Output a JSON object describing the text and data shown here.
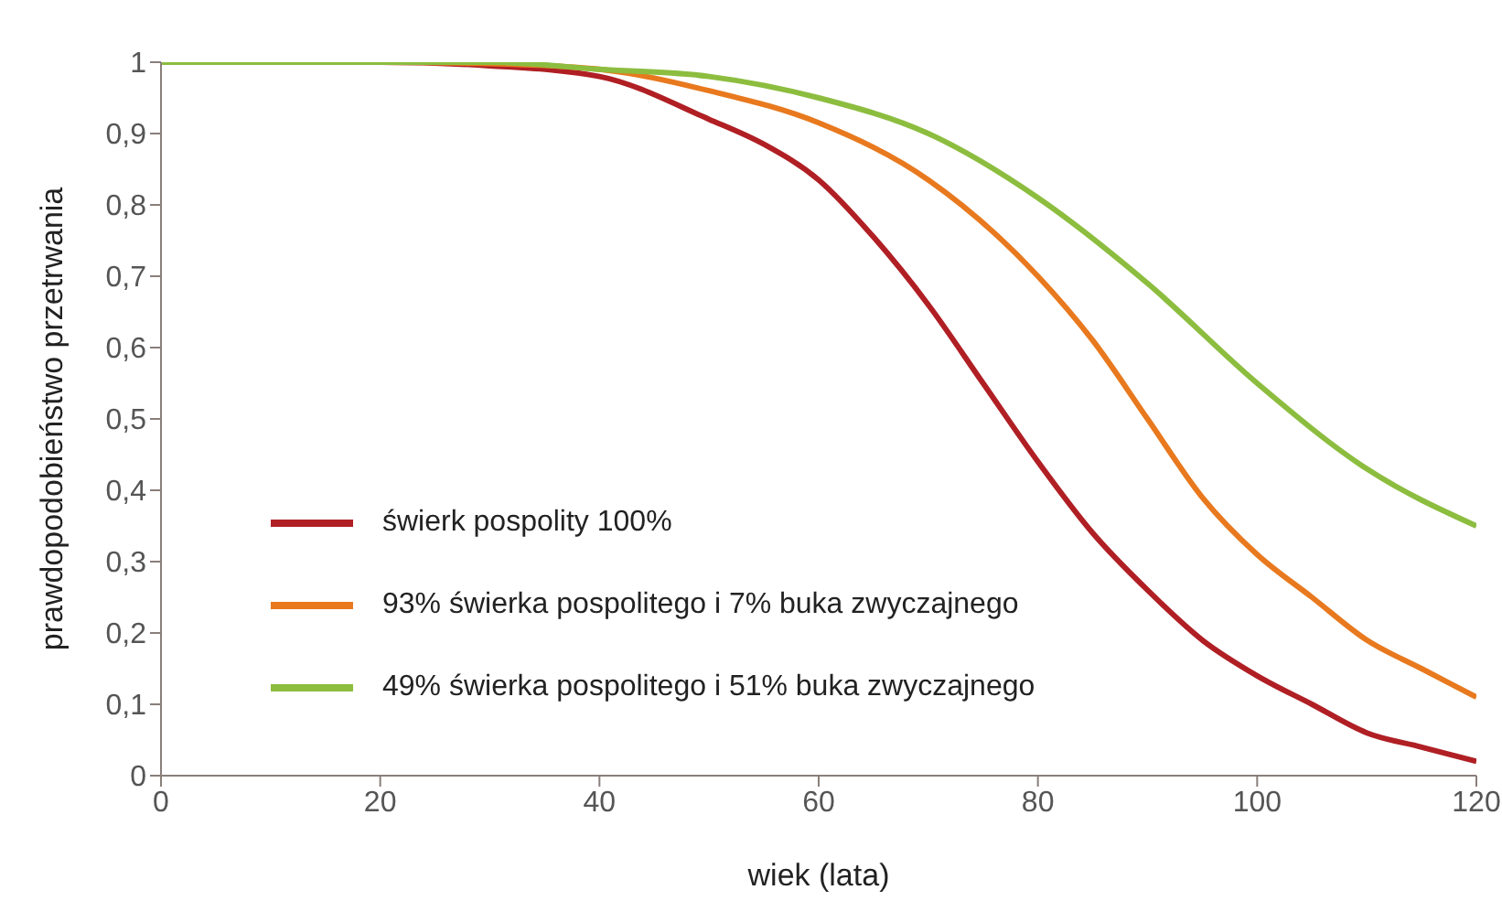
{
  "chart_data": {
    "type": "line",
    "xlabel": "wiek (lata)",
    "ylabel": "prawdopodobieństwo przetrwania",
    "xlim": [
      0,
      120
    ],
    "xticks": [
      0,
      20,
      40,
      60,
      80,
      100,
      120
    ],
    "ylim": [
      0,
      1
    ],
    "yticks": [
      0,
      {
        "value": 0.1,
        "label": "0,1"
      },
      {
        "value": 0.2,
        "label": "0,2"
      },
      {
        "value": 0.3,
        "label": "0,3"
      },
      {
        "value": 0.4,
        "label": "0,4"
      },
      {
        "value": 0.5,
        "label": "0,5"
      },
      {
        "value": 0.6,
        "label": "0,6"
      },
      {
        "value": 0.7,
        "label": "0,7"
      },
      {
        "value": 0.8,
        "label": "0,8"
      },
      {
        "value": 0.9,
        "label": "0,9"
      },
      1
    ],
    "grid": false,
    "legend": "bottom left",
    "marker": "none",
    "line_style": "solid",
    "series": [
      {
        "name": "świerk pospolity 100%",
        "color": "#b01f24",
        "x": [
          0,
          10,
          20,
          30,
          40,
          50,
          55,
          60,
          65,
          70,
          75,
          80,
          85,
          90,
          95,
          100,
          105,
          110,
          115,
          120
        ],
        "values": [
          1,
          1,
          1,
          0.995,
          0.98,
          0.92,
          0.885,
          0.835,
          0.755,
          0.66,
          0.55,
          0.44,
          0.34,
          0.26,
          0.19,
          0.14,
          0.1,
          0.06,
          0.04,
          0.02
        ]
      },
      {
        "name": "93% świerka pospolitego i 7% buka zwyczajnego",
        "color": "#e8791e",
        "x": [
          0,
          10,
          20,
          30,
          40,
          50,
          60,
          70,
          80,
          85,
          90,
          95,
          100,
          105,
          110,
          115,
          120
        ],
        "values": [
          1,
          1,
          1,
          0.998,
          0.99,
          0.96,
          0.915,
          0.835,
          0.7,
          0.61,
          0.5,
          0.39,
          0.31,
          0.25,
          0.19,
          0.15,
          0.11
        ]
      },
      {
        "name": "49% świerka pospolitego i 51% buka zwyczajnego",
        "color": "#8cbd3f",
        "x": [
          0,
          10,
          20,
          30,
          40,
          50,
          60,
          70,
          80,
          90,
          100,
          110,
          120
        ],
        "values": [
          1,
          1,
          1,
          1,
          0.99,
          0.98,
          0.95,
          0.9,
          0.81,
          0.69,
          0.55,
          0.43,
          0.35
        ]
      }
    ]
  }
}
